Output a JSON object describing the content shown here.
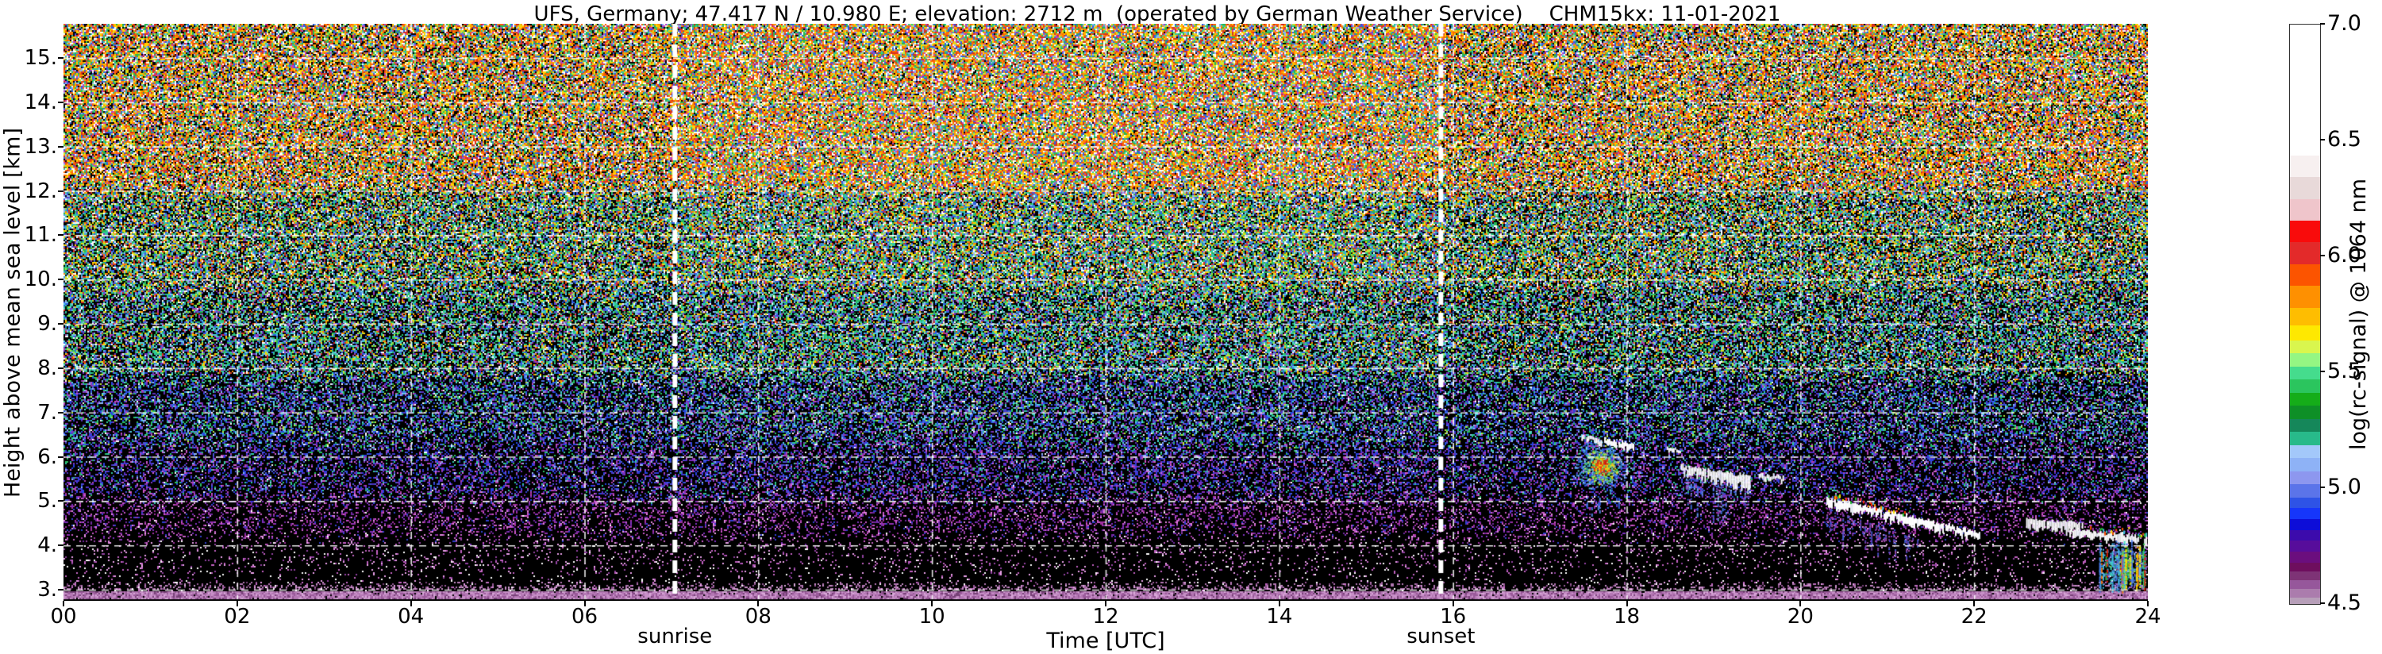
{
  "title": "UFS, Germany; 47.417 N / 10.980 E; elevation: 2712 m  (operated by German Weather Service)    CHM15kx: 11-01-2021",
  "axes": {
    "xlabel": "Time [UTC]",
    "ylabel": "Height above mean sea level [km]",
    "x_ticks": [
      {
        "label": "00",
        "hour": 0
      },
      {
        "label": "02",
        "hour": 2
      },
      {
        "label": "04",
        "hour": 4
      },
      {
        "label": "06",
        "hour": 6
      },
      {
        "label": "08",
        "hour": 8
      },
      {
        "label": "10",
        "hour": 10
      },
      {
        "label": "12",
        "hour": 12
      },
      {
        "label": "14",
        "hour": 14
      },
      {
        "label": "16",
        "hour": 16
      },
      {
        "label": "18",
        "hour": 18
      },
      {
        "label": "20",
        "hour": 20
      },
      {
        "label": "22",
        "hour": 22
      },
      {
        "label": "24",
        "hour": 24
      }
    ],
    "y_ticks": [
      {
        "label": "15.",
        "km": 15
      },
      {
        "label": "14.",
        "km": 14
      },
      {
        "label": "13.",
        "km": 13
      },
      {
        "label": "12.",
        "km": 12
      },
      {
        "label": "11.",
        "km": 11
      },
      {
        "label": "10.",
        "km": 10
      },
      {
        "label": "9.",
        "km": 9
      },
      {
        "label": "8.",
        "km": 8
      },
      {
        "label": "7.",
        "km": 7
      },
      {
        "label": "6.",
        "km": 6
      },
      {
        "label": "5.",
        "km": 5
      },
      {
        "label": "4.",
        "km": 4
      },
      {
        "label": "3.",
        "km": 3
      }
    ]
  },
  "sun_events": {
    "sunrise": {
      "label": "sunrise",
      "hour": 7.04
    },
    "sunset": {
      "label": "sunset",
      "hour": 15.86
    }
  },
  "colorbar": {
    "title": "log(rc-signal) @ 1064 nm",
    "range": [
      4.5,
      7.0
    ],
    "ticks": [
      {
        "label": "7.0",
        "value": 7.0
      },
      {
        "label": "6.5",
        "value": 6.5
      },
      {
        "label": "6.0",
        "value": 6.0
      },
      {
        "label": "5.5",
        "value": 5.5
      },
      {
        "label": "5.0",
        "value": 5.0
      },
      {
        "label": "4.5",
        "value": 4.5
      }
    ],
    "segments": [
      [
        "#ffffff",
        60
      ],
      [
        "#f7f0f0",
        10
      ],
      [
        "#e8d9d9",
        10
      ],
      [
        "#efc5cb",
        10
      ],
      [
        "#f90b0b",
        10
      ],
      [
        "#e32a2a",
        10
      ],
      [
        "#fc5400",
        10
      ],
      [
        "#fe9001",
        10
      ],
      [
        "#febd01",
        8
      ],
      [
        "#fee801",
        7
      ],
      [
        "#d9f64e",
        6
      ],
      [
        "#94f683",
        6
      ],
      [
        "#45dc8d",
        6
      ],
      [
        "#2bc55e",
        6
      ],
      [
        "#15ad19",
        6
      ],
      [
        "#0e8f27",
        6
      ],
      [
        "#15875a",
        6
      ],
      [
        "#28ba8a",
        6
      ],
      [
        "#a3c8fa",
        6
      ],
      [
        "#8eb2f6",
        6
      ],
      [
        "#8d97ef",
        6
      ],
      [
        "#5b74e9",
        6
      ],
      [
        "#2e53e6",
        5
      ],
      [
        "#1636fa",
        5
      ],
      [
        "#0d0dd8",
        5
      ],
      [
        "#3c0bac",
        5
      ],
      [
        "#570d9b",
        5
      ],
      [
        "#6b0e7e",
        5
      ],
      [
        "#6e0e5e",
        4
      ],
      [
        "#7e3376",
        4
      ],
      [
        "#96579b",
        4
      ],
      [
        "#ab7cad",
        4
      ],
      [
        "#b79fb9",
        3
      ]
    ]
  },
  "chart_data": {
    "type": "heatmap",
    "title": "UFS, Germany; 47.417 N / 10.980 E; elevation: 2712 m  (operated by German Weather Service)    CHM15kx: 11-01-2021",
    "xlabel": "Time [UTC]",
    "ylabel": "Height above mean sea level [km]",
    "x_range_hours": [
      0,
      24
    ],
    "y_range_km": [
      2.75,
      15.77
    ],
    "value_label": "log(rc-signal) @ 1064 nm",
    "value_range": [
      4.5,
      7.0
    ],
    "grid": {
      "horizontal_km": [
        3,
        4,
        5,
        6,
        7,
        8,
        9,
        10,
        11,
        12,
        13,
        14,
        15
      ],
      "vertical_hours": [
        2,
        4,
        6,
        8,
        10,
        12,
        14,
        16,
        18,
        20,
        22
      ]
    },
    "sunrise_hour": 7.04,
    "sunset_hour": 15.86,
    "ground_return_band_km": [
      2.75,
      2.97
    ],
    "noise_bands": [
      {
        "km": [
          12.0,
          15.8
        ],
        "density": 0.85,
        "colors": [
          [
            "#d83020",
            10
          ],
          [
            "#ff6600",
            9
          ],
          [
            "#ff9900",
            9
          ],
          [
            "#ffd400",
            9
          ],
          [
            "#ffffff",
            10
          ],
          [
            "#c8e838",
            5
          ],
          [
            "#28b850",
            8
          ],
          [
            "#30c8a0",
            5
          ],
          [
            "#3060e0",
            7
          ],
          [
            "#90b8f0",
            5
          ],
          [
            "#c040c0",
            4
          ]
        ]
      },
      {
        "km": [
          9.8,
          12.0
        ],
        "density": 0.72,
        "colors": [
          [
            "#d83020",
            6
          ],
          [
            "#ff8800",
            6
          ],
          [
            "#ffd400",
            6
          ],
          [
            "#ffffff",
            7
          ],
          [
            "#b8e838",
            7
          ],
          [
            "#28b850",
            10
          ],
          [
            "#30c8a0",
            9
          ],
          [
            "#40a8e0",
            6
          ],
          [
            "#3060e0",
            8
          ],
          [
            "#90b8f0",
            6
          ],
          [
            "#8030b0",
            4
          ]
        ]
      },
      {
        "km": [
          7.8,
          9.8
        ],
        "density": 0.6,
        "colors": [
          [
            "#d83020",
            3
          ],
          [
            "#ff8800",
            3
          ],
          [
            "#ffd400",
            3
          ],
          [
            "#ffffff",
            4
          ],
          [
            "#b8e838",
            6
          ],
          [
            "#28c060",
            11
          ],
          [
            "#30c8a0",
            10
          ],
          [
            "#50d0e0",
            7
          ],
          [
            "#3060e8",
            10
          ],
          [
            "#90b8f0",
            7
          ],
          [
            "#7030c0",
            5
          ],
          [
            "#b040b0",
            4
          ]
        ]
      },
      {
        "km": [
          6.3,
          7.8
        ],
        "density": 0.47,
        "colors": [
          [
            "#28c060",
            7
          ],
          [
            "#30c8a0",
            6
          ],
          [
            "#b8e838",
            3
          ],
          [
            "#50d0e0",
            4
          ],
          [
            "#2848e0",
            12
          ],
          [
            "#4070e8",
            8
          ],
          [
            "#90b8f0",
            5
          ],
          [
            "#6030c0",
            8
          ],
          [
            "#9038b8",
            6
          ],
          [
            "#c050c0",
            4
          ],
          [
            "#ffffff",
            2
          ]
        ]
      },
      {
        "km": [
          5.1,
          6.3
        ],
        "density": 0.37,
        "colors": [
          [
            "#2840e0",
            11
          ],
          [
            "#4858d8",
            7
          ],
          [
            "#5030c8",
            8
          ],
          [
            "#8030c0",
            7
          ],
          [
            "#b040b0",
            7
          ],
          [
            "#d060d0",
            4
          ],
          [
            "#30c8a0",
            3
          ],
          [
            "#28c060",
            3
          ],
          [
            "#90b8f0",
            3
          ],
          [
            "#ffffff",
            1
          ]
        ]
      },
      {
        "km": [
          4.2,
          5.1
        ],
        "density": 0.26,
        "colors": [
          [
            "#a030a0",
            10
          ],
          [
            "#c858c8",
            8
          ],
          [
            "#7028a0",
            7
          ],
          [
            "#e088e0",
            5
          ],
          [
            "#3040d0",
            4
          ],
          [
            "#8030c0",
            6
          ],
          [
            "#ffffff",
            1
          ]
        ]
      },
      {
        "km": [
          3.35,
          4.2
        ],
        "density": 0.1,
        "colors": [
          [
            "#c060c0",
            8
          ],
          [
            "#e8a0e8",
            7
          ],
          [
            "#9040a0",
            5
          ],
          [
            "#ffffff",
            4
          ]
        ]
      },
      {
        "km": [
          2.97,
          3.35
        ],
        "density": 0.045,
        "colors": [
          [
            "#e8a0e8",
            6
          ],
          [
            "#ffffff",
            6
          ],
          [
            "#c868c8",
            4
          ]
        ]
      },
      {
        "km": [
          2.75,
          2.97
        ],
        "density": 0.97,
        "colors": [
          [
            "#b478b4",
            10
          ],
          [
            "#c890c8",
            8
          ],
          [
            "#9a5a9a",
            7
          ],
          [
            "#774177",
            4
          ],
          [
            "#d8a8d8",
            3
          ]
        ]
      }
    ],
    "cloud_features": [
      {
        "kind": "cluster",
        "name": "strong-multicolor-cloud",
        "t": [
          17.38,
          18.02
        ],
        "h": [
          5.15,
          6.45
        ],
        "layers": [
          {
            "frac": 1.0,
            "density": 0.5,
            "colors": [
              "#55c0f0",
              "#3888e8",
              "#80d8f8",
              "#2860d8"
            ]
          },
          {
            "frac": 0.64,
            "density": 0.62,
            "colors": [
              "#30d060",
              "#70e060",
              "#c8e830",
              "#ffe000"
            ]
          },
          {
            "frac": 0.36,
            "density": 0.8,
            "colors": [
              "#ff9800",
              "#ff4000",
              "#e01810",
              "#ffd000"
            ]
          }
        ],
        "streaks": {
          "t": [
            17.5,
            17.95
          ],
          "depth": 0.45,
          "density": 0.25,
          "colors": [
            "#3060d8",
            "#5080e0"
          ]
        }
      },
      {
        "kind": "band",
        "name": "cloud-top-white-1",
        "t": [
          17.46,
          17.7
        ],
        "top": [
          6.5,
          6.4
        ],
        "th": [
          0.1,
          0.14
        ]
      },
      {
        "kind": "band",
        "name": "cloud-top-white-2",
        "t": [
          17.74,
          18.08
        ],
        "top": [
          6.42,
          6.28
        ],
        "th": [
          0.1,
          0.16
        ]
      },
      {
        "kind": "band",
        "name": "small-cloud-dot",
        "t": [
          18.46,
          18.62
        ],
        "top": [
          6.24,
          6.16
        ],
        "th": [
          0.09,
          0.07
        ]
      },
      {
        "kind": "band",
        "name": "white-cloud-a",
        "t": [
          18.62,
          19.42
        ],
        "top": [
          5.8,
          5.56
        ],
        "th": [
          0.16,
          0.3
        ],
        "streaks": {
          "t": [
            18.66,
            19.4
          ],
          "depth": 1.0,
          "density": 0.5,
          "colors": [
            "#4878e8",
            "#78a8f0",
            "#3858d0",
            "#9048c0"
          ]
        }
      },
      {
        "kind": "band",
        "name": "white-dash",
        "t": [
          19.5,
          19.8
        ],
        "top": [
          5.62,
          5.54
        ],
        "th": [
          0.12,
          0.09
        ]
      },
      {
        "kind": "band",
        "name": "descending-white-band",
        "t": [
          20.28,
          22.08
        ],
        "top": [
          5.08,
          4.28
        ],
        "th": [
          0.2,
          0.15
        ],
        "fringe": {
          "t": [
            20.28,
            21.25
          ],
          "colors": [
            "#ff3000",
            "#ff9800",
            "#28c030",
            "#ffe000",
            "#40c8e0"
          ]
        },
        "streaks": {
          "t": [
            20.3,
            21.4
          ],
          "depth": 0.8,
          "density": 0.45,
          "colors": [
            "#5048c8",
            "#8040b0",
            "#4060d8",
            "#a050b0"
          ]
        }
      },
      {
        "kind": "band",
        "name": "white-patch",
        "t": [
          22.58,
          23.24
        ],
        "top": [
          4.62,
          4.5
        ],
        "th": [
          0.2,
          0.22
        ]
      },
      {
        "kind": "band",
        "name": "low-white-band",
        "t": [
          23.06,
          23.98
        ],
        "top": [
          4.36,
          4.2
        ],
        "th": [
          0.13,
          0.18
        ],
        "fringe": {
          "t": [
            23.3,
            23.98
          ],
          "colors": [
            "#28c030",
            "#ffe000",
            "#ff5000",
            "#40c8e0"
          ]
        }
      },
      {
        "kind": "cluster",
        "name": "low-multicolor-blob",
        "t": [
          23.42,
          23.98
        ],
        "h": [
          2.95,
          4.12
        ],
        "layers": [
          {
            "frac": 1.0,
            "density": 0.55,
            "colors": [
              "#4878f0",
              "#70b0f8",
              "#8058d0",
              "#40c0e8"
            ]
          },
          {
            "frac": 0.55,
            "density": 0.5,
            "colors": [
              "#30c878",
              "#28b838",
              "#b0e830",
              "#40e0c0"
            ]
          },
          {
            "frac": 0.28,
            "density": 0.45,
            "colors": [
              "#ffe000",
              "#ff7800",
              "#e02000"
            ]
          }
        ],
        "streaky": true
      }
    ]
  }
}
